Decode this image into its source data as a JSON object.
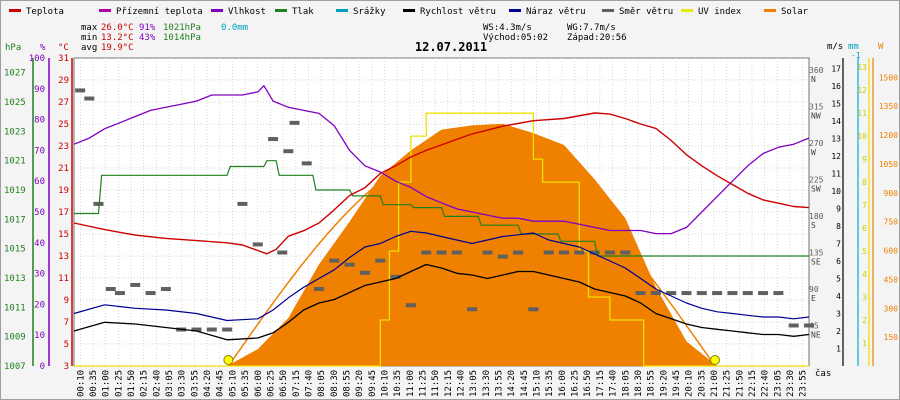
{
  "chart_data": {
    "type": "line",
    "title": "12.07.2011",
    "xlabel": "čas",
    "legend": [
      {
        "name": "Teplota",
        "color": "#cc0000"
      },
      {
        "name": "Přízemní teplota",
        "color": "#b000b0"
      },
      {
        "name": "Vlhkost",
        "color": "#8000c0"
      },
      {
        "name": "Tlak",
        "color": "#208020"
      },
      {
        "name": "Srážky",
        "color": "#00a0c0"
      },
      {
        "name": "Rychlost větru",
        "color": "#000000"
      },
      {
        "name": "Náraz větru",
        "color": "#000090"
      },
      {
        "name": "Směr větru",
        "color": "#606060"
      },
      {
        "name": "UV index",
        "color": "#e8e800"
      },
      {
        "name": "Solar",
        "color": "#f08000"
      }
    ],
    "stats": {
      "max_label": "max",
      "max_temp": "26.0°C",
      "max_hum": "91%",
      "max_press": "1021hPa",
      "rain": "0.0mm",
      "min_label": "min",
      "min_temp": "13.2°C",
      "min_hum": "43%",
      "min_press": "1014hPa",
      "avg_label": "avg",
      "avg_temp": "19.9°C",
      "ws": "WS:4.3m/s",
      "wg": "WG:7.7m/s",
      "sunrise": "Východ:05:02",
      "sunset": "Západ:20:56"
    },
    "axes": {
      "press": {
        "unit": "hPa",
        "ticks": [
          1007,
          1009,
          1011,
          1013,
          1015,
          1017,
          1019,
          1021,
          1023,
          1025,
          1027
        ]
      },
      "hum": {
        "unit": "%",
        "ticks": [
          0,
          10,
          20,
          30,
          40,
          50,
          60,
          70,
          80,
          90,
          100
        ]
      },
      "temp": {
        "unit": "°C",
        "ticks": [
          3,
          5,
          7,
          9,
          11,
          13,
          15,
          17,
          19,
          21,
          23,
          25,
          27,
          29,
          31
        ]
      },
      "dir": {
        "ticks": [
          {
            "v": 45,
            "l": "NE"
          },
          {
            "v": 90,
            "l": "E"
          },
          {
            "v": 135,
            "l": "SE"
          },
          {
            "v": 180,
            "l": "S"
          },
          {
            "v": 225,
            "l": "SW"
          },
          {
            "v": 270,
            "l": "W"
          },
          {
            "v": 315,
            "l": "NW"
          },
          {
            "v": 360,
            "l": "N"
          }
        ]
      },
      "wind": {
        "unit": "m/s",
        "ticks": [
          1,
          2,
          3,
          4,
          5,
          6,
          7,
          8,
          9,
          10,
          11,
          12,
          13,
          14,
          15,
          16,
          17
        ]
      },
      "rain": {
        "unit": "mm",
        "ticks": [
          0,
          1
        ]
      },
      "uv": {
        "unit": "W",
        "ticks": [
          1,
          2,
          3,
          4,
          5,
          6,
          7,
          8,
          9,
          10,
          11,
          12,
          13
        ]
      },
      "solar": {
        "ticks": [
          150,
          300,
          450,
          600,
          750,
          900,
          1050,
          1200,
          1350,
          1500
        ]
      }
    },
    "x_tick_labels": [
      "00:10",
      "00:35",
      "01:00",
      "01:25",
      "01:50",
      "02:15",
      "02:40",
      "03:05",
      "03:30",
      "03:55",
      "04:20",
      "04:45",
      "05:10",
      "05:35",
      "06:00",
      "06:25",
      "06:50",
      "07:15",
      "07:40",
      "08:05",
      "08:30",
      "08:55",
      "09:20",
      "09:45",
      "10:10",
      "10:35",
      "11:00",
      "11:25",
      "11:50",
      "12:15",
      "12:40",
      "13:05",
      "13:30",
      "13:55",
      "14:20",
      "14:45",
      "15:10",
      "15:35",
      "16:00",
      "16:25",
      "16:50",
      "17:15",
      "17:40",
      "18:05",
      "18:30",
      "18:55",
      "19:20",
      "19:45",
      "20:10",
      "20:35",
      "21:00",
      "21:25",
      "21:50",
      "22:15",
      "22:40",
      "23:05",
      "23:30",
      "23:55"
    ],
    "series": {
      "temperature": {
        "x": [
          0,
          1,
          2,
          3,
          4,
          5,
          5.5,
          6,
          6.3,
          6.6,
          7,
          7.5,
          8,
          8.5,
          9,
          9.5,
          10,
          10.5,
          11,
          11.5,
          12,
          12.5,
          13,
          14,
          15,
          16,
          17,
          17.5,
          18,
          18.5,
          19,
          19.5,
          20,
          20.5,
          21,
          21.5,
          22,
          22.5,
          23,
          23.5,
          24
        ],
        "y": [
          16.0,
          15.4,
          14.9,
          14.6,
          14.4,
          14.2,
          14.0,
          13.5,
          13.2,
          13.6,
          14.8,
          15.3,
          16.0,
          17.2,
          18.5,
          19.2,
          20.5,
          21.2,
          22.0,
          22.6,
          23.1,
          23.6,
          24.1,
          24.8,
          25.3,
          25.5,
          26.0,
          25.9,
          25.5,
          25.0,
          24.6,
          23.5,
          22.2,
          21.2,
          20.3,
          19.5,
          18.7,
          18.1,
          17.8,
          17.5,
          17.4
        ]
      },
      "humidity": {
        "x": [
          0,
          0.5,
          1,
          1.5,
          2,
          2.5,
          3,
          3.5,
          4,
          4.5,
          5,
          5.5,
          6,
          6.2,
          6.5,
          7,
          7.5,
          8,
          8.5,
          9,
          9.5,
          10,
          10.5,
          11,
          11.5,
          12,
          12.5,
          13,
          13.5,
          14,
          14.5,
          15,
          15.5,
          16,
          16.5,
          17,
          17.5,
          18,
          18.5,
          19,
          19.5,
          20,
          20.5,
          21,
          21.5,
          22,
          22.5,
          23,
          23.5,
          24
        ],
        "y": [
          72,
          74,
          77,
          79,
          81,
          83,
          84,
          85,
          86,
          88,
          88,
          88,
          89,
          91,
          86,
          84,
          83,
          82,
          78,
          70,
          65,
          63,
          60,
          58,
          55,
          53,
          51,
          50,
          49,
          48,
          48,
          47,
          47,
          47,
          46,
          45,
          44,
          44,
          44,
          43,
          43,
          45,
          50,
          55,
          60,
          65,
          69,
          71,
          72,
          74
        ]
      },
      "pressure": {
        "x": [
          0,
          0.8,
          0.9,
          5.0,
          5.1,
          6.2,
          6.3,
          6.6,
          6.7,
          7.8,
          7.9,
          9.0,
          9.1,
          10.0,
          10.1,
          11.0,
          11.1,
          12.0,
          12.1,
          13.2,
          13.3,
          14.5,
          14.6,
          15.8,
          15.9,
          17.0,
          17.1,
          24
        ],
        "y": [
          1017.4,
          1017.4,
          1020.0,
          1020.0,
          1020.6,
          1020.6,
          1021.0,
          1021.0,
          1020.0,
          1020.0,
          1019.0,
          1019.0,
          1018.6,
          1018.6,
          1018.0,
          1018.0,
          1017.8,
          1017.8,
          1017.2,
          1017.2,
          1016.6,
          1016.6,
          1016.0,
          1016.0,
          1015.5,
          1015.5,
          1014.5,
          1014.5
        ]
      },
      "uv_index": {
        "x": [
          0,
          10.0,
          10.0,
          10.3,
          10.3,
          10.6,
          10.6,
          11.0,
          11.0,
          11.5,
          11.5,
          15.0,
          15.0,
          15.3,
          15.3,
          16.5,
          16.5,
          16.8,
          16.8,
          17.5,
          17.5,
          18.6,
          18.6,
          24
        ],
        "y": [
          0,
          0,
          2,
          2,
          5,
          5,
          8,
          8,
          10,
          10,
          11,
          11,
          9,
          9,
          8,
          8,
          5,
          5,
          3,
          3,
          2,
          2,
          0,
          0
        ]
      },
      "solar": {
        "x": [
          0,
          5.0,
          6.0,
          7.0,
          8.0,
          9.0,
          10.0,
          11.0,
          12.0,
          13.0,
          14.0,
          15.0,
          16.0,
          17.0,
          18.0,
          19.0,
          20.0,
          21.0,
          24
        ],
        "y": [
          0,
          0,
          80,
          260,
          520,
          760,
          980,
          1130,
          1220,
          1260,
          1250,
          1220,
          1140,
          980,
          760,
          420,
          120,
          0,
          0
        ]
      },
      "wind_speed": {
        "x": [
          0,
          1,
          2,
          3,
          4,
          5,
          6,
          6.5,
          7,
          7.5,
          8,
          8.5,
          9,
          9.5,
          10,
          10.5,
          11,
          11.5,
          12,
          12.5,
          13,
          13.5,
          14,
          14.5,
          15,
          15.5,
          16,
          16.5,
          17,
          17.5,
          18,
          18.5,
          19,
          19.5,
          20,
          20.5,
          21,
          21.5,
          22,
          22.5,
          23,
          23.5,
          24
        ],
        "y": [
          2.0,
          2.5,
          2.4,
          2.2,
          2.0,
          1.5,
          1.6,
          1.9,
          2.5,
          3.2,
          3.6,
          3.8,
          4.2,
          4.6,
          4.8,
          5.0,
          5.4,
          5.8,
          5.6,
          5.3,
          5.2,
          5.0,
          5.2,
          5.4,
          5.4,
          5.2,
          5.0,
          4.8,
          4.4,
          4.2,
          4.0,
          3.6,
          3.0,
          2.7,
          2.4,
          2.2,
          2.1,
          2.0,
          1.9,
          1.8,
          1.8,
          1.7,
          1.8
        ]
      },
      "wind_gust": {
        "x": [
          0,
          1,
          2,
          3,
          4,
          5,
          6,
          6.5,
          7,
          7.5,
          8,
          8.5,
          9,
          9.5,
          10,
          10.5,
          11,
          11.5,
          12,
          12.5,
          13,
          13.5,
          14,
          14.5,
          15,
          15.5,
          16,
          16.5,
          17,
          17.5,
          18,
          18.5,
          19,
          19.5,
          20,
          20.5,
          21,
          21.5,
          22,
          22.5,
          23,
          23.5,
          24
        ],
        "y": [
          3.0,
          3.5,
          3.3,
          3.2,
          3.0,
          2.6,
          2.7,
          3.2,
          3.9,
          4.5,
          5.0,
          5.5,
          6.2,
          6.8,
          7.0,
          7.4,
          7.7,
          7.6,
          7.4,
          7.2,
          7.0,
          7.2,
          7.4,
          7.5,
          7.6,
          7.2,
          7.0,
          6.8,
          6.4,
          6.0,
          5.6,
          5.0,
          4.4,
          4.0,
          3.6,
          3.3,
          3.1,
          3.0,
          2.9,
          2.8,
          2.8,
          2.7,
          2.8
        ]
      },
      "wind_dir": [
        [
          0.2,
          340
        ],
        [
          0.5,
          330
        ],
        [
          0.8,
          200
        ],
        [
          1.2,
          95
        ],
        [
          1.5,
          90
        ],
        [
          2.0,
          100
        ],
        [
          2.5,
          90
        ],
        [
          3.0,
          95
        ],
        [
          3.5,
          45
        ],
        [
          4.0,
          45
        ],
        [
          4.5,
          45
        ],
        [
          5.0,
          45
        ],
        [
          5.5,
          200
        ],
        [
          6.0,
          150
        ],
        [
          6.5,
          280
        ],
        [
          7.0,
          265
        ],
        [
          7.2,
          300
        ],
        [
          6.8,
          140
        ],
        [
          7.6,
          250
        ],
        [
          8.0,
          95
        ],
        [
          8.5,
          130
        ],
        [
          9.0,
          125
        ],
        [
          9.5,
          115
        ],
        [
          10.0,
          130
        ],
        [
          10.5,
          110
        ],
        [
          11.0,
          75
        ],
        [
          11.5,
          140
        ],
        [
          12.0,
          140
        ],
        [
          12.5,
          140
        ],
        [
          13.0,
          70
        ],
        [
          13.5,
          140
        ],
        [
          14.0,
          135
        ],
        [
          14.5,
          140
        ],
        [
          15.0,
          70
        ],
        [
          15.5,
          140
        ],
        [
          16.0,
          140
        ],
        [
          16.5,
          140
        ],
        [
          17.0,
          140
        ],
        [
          17.5,
          140
        ],
        [
          18.0,
          140
        ],
        [
          18.5,
          90
        ],
        [
          19.0,
          90
        ],
        [
          19.5,
          90
        ],
        [
          20.0,
          90
        ],
        [
          20.5,
          90
        ],
        [
          21.0,
          90
        ],
        [
          21.5,
          90
        ],
        [
          22.0,
          90
        ],
        [
          22.5,
          90
        ],
        [
          23.0,
          90
        ],
        [
          23.5,
          50
        ],
        [
          24.0,
          50
        ]
      ]
    }
  }
}
